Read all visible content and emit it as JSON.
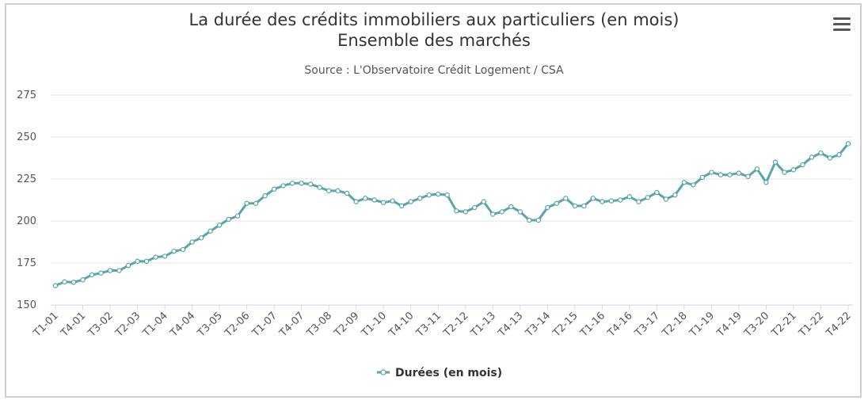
{
  "chart_menu_icon": "hamburger-menu-icon",
  "chart_data": {
    "type": "line",
    "title_line1": "La durée des crédits immobiliers aux particuliers (en mois)",
    "title_line2": "Ensemble des marchés",
    "subtitle": "Source : L'Observatoire Crédit Logement / CSA",
    "ylim": [
      150,
      275
    ],
    "yticks": [
      "150",
      "175",
      "200",
      "225",
      "250",
      "275"
    ],
    "grid": true,
    "legend_position": "bottom",
    "color": "#5aa6a6",
    "x_tick_labels": [
      "T1-01",
      "T4-01",
      "T3-02",
      "T2-03",
      "T1-04",
      "T4-04",
      "T3-05",
      "T2-06",
      "T1-07",
      "T4-07",
      "T3-08",
      "T2-09",
      "T1-10",
      "T4-10",
      "T3-11",
      "T2-12",
      "T1-13",
      "T4-13",
      "T3-14",
      "T2-15",
      "T1-16",
      "T4-16",
      "T3-17",
      "T2-18",
      "T1-19",
      "T4-19",
      "T3-20",
      "T2-21",
      "T1-22",
      "T4-22"
    ],
    "series": [
      {
        "name": "Durées (en mois)",
        "values": [
          161.5,
          163.8,
          163.5,
          165.0,
          168.0,
          169.0,
          170.5,
          170.5,
          173.5,
          176.0,
          176.0,
          178.5,
          179.0,
          182.0,
          183.0,
          187.5,
          190.0,
          194.0,
          197.5,
          201.0,
          203.0,
          210.5,
          210.5,
          215.0,
          219.0,
          221.0,
          222.5,
          222.5,
          222.0,
          220.0,
          218.0,
          218.0,
          216.5,
          211.5,
          213.5,
          212.5,
          211.0,
          212.0,
          209.0,
          211.5,
          213.5,
          215.5,
          216.0,
          215.5,
          206.0,
          205.5,
          208.0,
          211.5,
          204.0,
          205.5,
          208.5,
          205.5,
          200.5,
          200.5,
          208.0,
          210.5,
          213.5,
          209.0,
          209.0,
          213.5,
          211.5,
          212.0,
          212.5,
          214.5,
          211.5,
          214.0,
          217.0,
          213.0,
          215.5,
          223.0,
          221.5,
          226.0,
          229.0,
          227.5,
          227.5,
          228.5,
          226.5,
          231.0,
          223.0,
          235.0,
          229.0,
          230.5,
          233.5,
          238.0,
          240.5,
          237.5,
          239.5,
          246.0
        ]
      }
    ]
  }
}
